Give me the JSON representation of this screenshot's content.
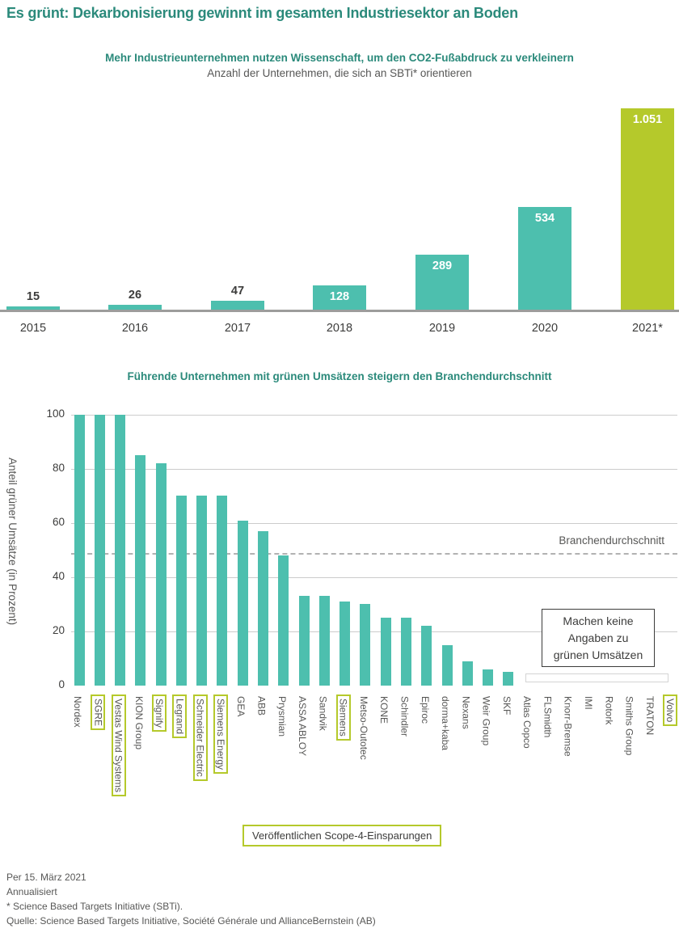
{
  "title": "Es grünt: Dekarbonisierung gewinnt im gesamten Industriesektor an Boden",
  "colors": {
    "teal_bar": "#4DBFAE",
    "lime_accent": "#B5C92B",
    "heading_teal": "#2B8A7B",
    "dark_text": "#3C3C3B",
    "gray_text": "#575756",
    "gridline": "#CCCCCC",
    "axis_line": "#9D9D9C",
    "dashed_line": "#B2B2B2"
  },
  "chart_data": [
    {
      "type": "bar",
      "title": "Mehr Industrieunternehmen nutzen Wissenschaft, um den CO2-Fußabdruck zu verkleinern",
      "subtitle": "Anzahl der Unternehmen, die sich an SBTi* orientieren",
      "categories": [
        "2015",
        "2016",
        "2017",
        "2018",
        "2019",
        "2020",
        "2021*"
      ],
      "values": [
        15,
        26,
        47,
        128,
        289,
        534,
        1051
      ],
      "value_labels": [
        "15",
        "26",
        "47",
        "128",
        "289",
        "534",
        "1.051"
      ],
      "highlight_index": 6,
      "ylim": [
        0,
        1100
      ],
      "grid": false,
      "notes": "2021* bar highlighted in lime; labels for 15/26/47 sit above bars, larger values inside bar tops in white"
    },
    {
      "type": "bar",
      "title": "Führende Unternehmen mit grünen Umsätzen steigern den Branchendurchschnitt",
      "ylabel": "Anteil grüner Umsätze (in Prozent)",
      "yticks": [
        0,
        20,
        40,
        60,
        80,
        100
      ],
      "ylim": [
        0,
        100
      ],
      "grid": true,
      "categories": [
        "Nordex",
        "SGRE",
        "Vestas Wind Systems",
        "KION Group",
        "Signify",
        "Legrand",
        "Schneider Electric",
        "Siemens Energy",
        "GEA",
        "ABB",
        "Prysmian",
        "ASSA ABLOY",
        "Sandvik",
        "Siemens",
        "Metso-Outotec",
        "KONE",
        "Schindler",
        "Epiroc",
        "dorma+kaba",
        "Nexans",
        "Weir Group",
        "SKF",
        "Atlas Copco",
        "FLSmidth",
        "Knorr-Bremse",
        "IMI",
        "Rotork",
        "Smiths Group",
        "TRATON",
        "Volvo"
      ],
      "values": [
        100,
        100,
        100,
        85,
        82,
        70,
        70,
        70,
        61,
        57,
        48,
        33,
        33,
        31,
        30,
        25,
        25,
        22,
        15,
        9,
        6,
        5,
        null,
        null,
        null,
        null,
        null,
        null,
        null,
        null
      ],
      "boxed_categories": [
        "SGRE",
        "Vestas Wind Systems",
        "Signify",
        "Legrand",
        "Schneider Electric",
        "Siemens Energy",
        "Siemens",
        "Volvo"
      ],
      "average_line": {
        "value": 49,
        "label": "Branchendurchschnitt"
      },
      "no_data_note_lines": [
        "Machen keine",
        "Angaben zu",
        "grünen Umsätzen"
      ],
      "legend_box_label": "Veröffentlichen Scope-4-Einsparungen",
      "legend_position": "bottom-center"
    }
  ],
  "footnotes": [
    "Per 15. März 2021",
    "Annualisiert",
    "* Science Based Targets Initiative (SBTi).",
    "Quelle: Science Based Targets Initiative, Société Générale und AllianceBernstein (AB)"
  ]
}
